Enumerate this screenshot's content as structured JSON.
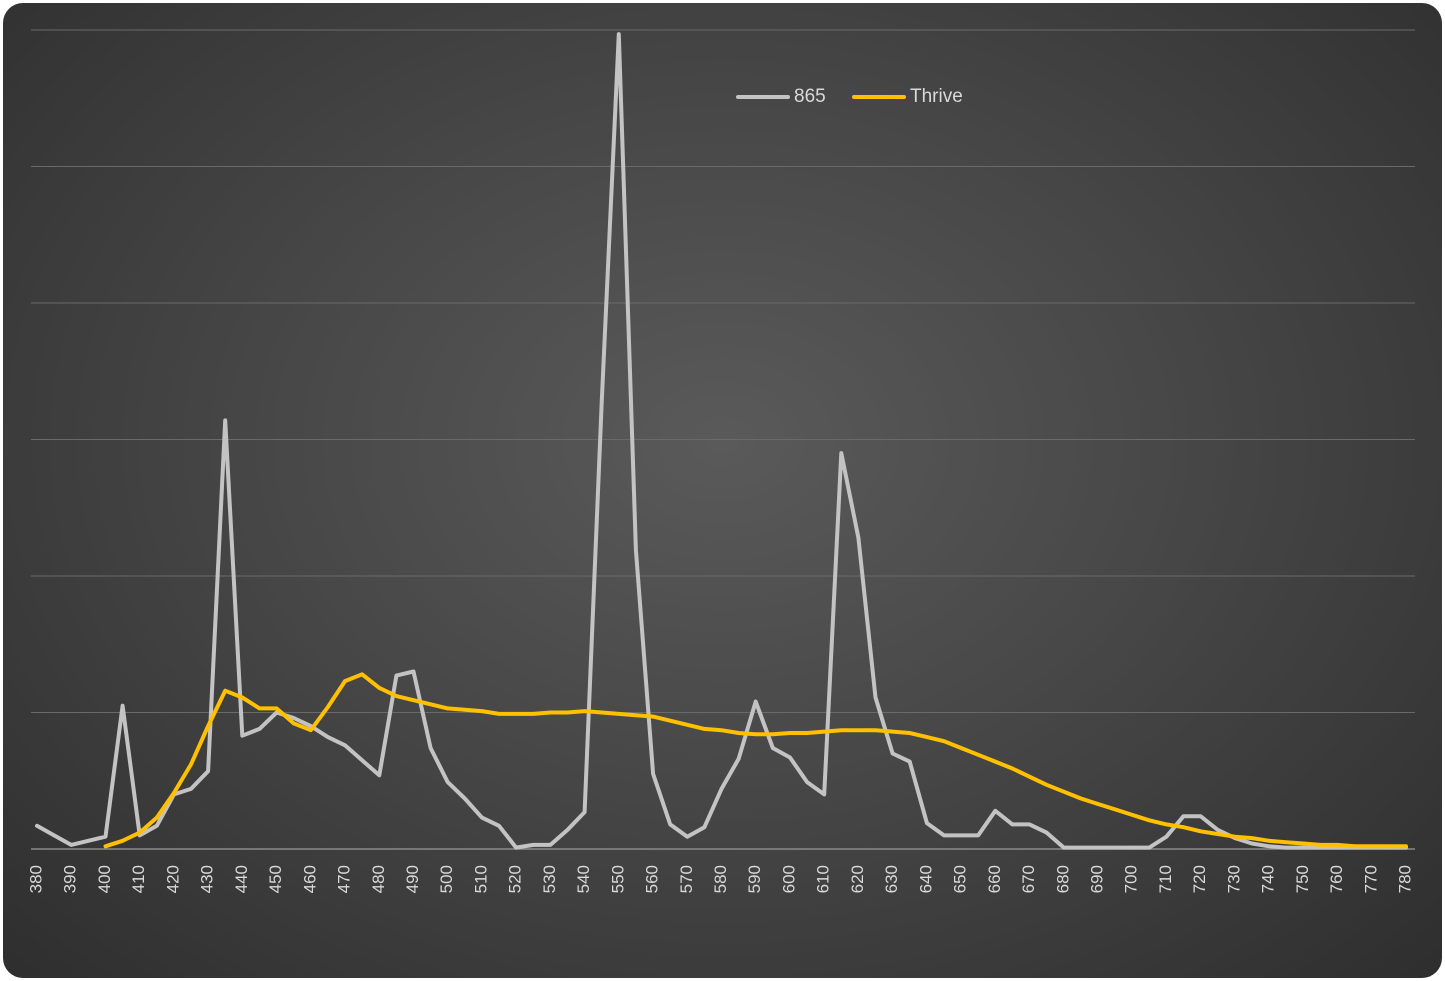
{
  "chart_data": {
    "type": "line",
    "title": "",
    "xlabel": "",
    "ylabel": "",
    "legend_position": "top-center",
    "grid": true,
    "ylim": [
      0,
      6
    ],
    "x": [
      380,
      385,
      390,
      395,
      400,
      405,
      410,
      415,
      420,
      425,
      430,
      435,
      440,
      445,
      450,
      455,
      460,
      465,
      470,
      475,
      480,
      485,
      490,
      495,
      500,
      505,
      510,
      515,
      520,
      525,
      530,
      535,
      540,
      545,
      550,
      555,
      560,
      565,
      570,
      575,
      580,
      585,
      590,
      595,
      600,
      605,
      610,
      615,
      620,
      625,
      630,
      635,
      640,
      645,
      650,
      655,
      660,
      665,
      670,
      675,
      680,
      685,
      690,
      695,
      700,
      705,
      710,
      715,
      720,
      725,
      730,
      735,
      740,
      745,
      750,
      755,
      760,
      765,
      770,
      775,
      780
    ],
    "x_ticks": [
      "380",
      "390",
      "400",
      "410",
      "420",
      "430",
      "440",
      "450",
      "460",
      "470",
      "480",
      "490",
      "500",
      "510",
      "520",
      "530",
      "540",
      "550",
      "560",
      "570",
      "580",
      "590",
      "600",
      "610",
      "620",
      "630",
      "640",
      "650",
      "660",
      "670",
      "680",
      "690",
      "700",
      "710",
      "720",
      "730",
      "740",
      "750",
      "760",
      "770",
      "780"
    ],
    "series": [
      {
        "name": "865",
        "color": "#c3c3c3",
        "values": [
          0.17,
          0.1,
          0.03,
          0.06,
          0.09,
          1.05,
          0.1,
          0.17,
          0.4,
          0.44,
          0.57,
          3.14,
          0.83,
          0.88,
          1.0,
          0.96,
          0.9,
          0.82,
          0.76,
          0.65,
          0.54,
          1.27,
          1.3,
          0.74,
          0.49,
          0.37,
          0.23,
          0.17,
          0.01,
          0.03,
          0.03,
          0.14,
          0.27,
          3.27,
          5.97,
          2.19,
          0.55,
          0.18,
          0.09,
          0.16,
          0.44,
          0.66,
          1.08,
          0.74,
          0.67,
          0.49,
          0.4,
          2.9,
          2.28,
          1.11,
          0.7,
          0.64,
          0.19,
          0.1,
          0.1,
          0.1,
          0.28,
          0.18,
          0.18,
          0.12,
          0.01,
          0.01,
          0.01,
          0.01,
          0.01,
          0.01,
          0.09,
          0.24,
          0.24,
          0.14,
          0.08,
          0.04,
          0.02,
          0.01,
          0.01,
          0.01,
          0.01,
          0.01,
          0.01,
          0.01,
          0.01
        ]
      },
      {
        "name": "Thrive",
        "color": "#ffc000",
        "values": [
          null,
          null,
          null,
          null,
          0.02,
          0.06,
          0.12,
          0.23,
          0.41,
          0.62,
          0.9,
          1.16,
          1.11,
          1.03,
          1.03,
          0.92,
          0.87,
          1.04,
          1.23,
          1.28,
          1.18,
          1.12,
          1.09,
          1.06,
          1.03,
          1.02,
          1.01,
          0.99,
          0.99,
          0.99,
          1.0,
          1.0,
          1.01,
          1.0,
          0.99,
          0.98,
          0.97,
          0.94,
          0.91,
          0.88,
          0.87,
          0.85,
          0.84,
          0.84,
          0.85,
          0.85,
          0.86,
          0.87,
          0.87,
          0.87,
          0.86,
          0.85,
          0.82,
          0.79,
          0.74,
          0.69,
          0.64,
          0.59,
          0.53,
          0.47,
          0.42,
          0.37,
          0.33,
          0.29,
          0.25,
          0.21,
          0.18,
          0.16,
          0.13,
          0.11,
          0.09,
          0.08,
          0.06,
          0.05,
          0.04,
          0.03,
          0.03,
          0.02,
          0.02,
          0.02,
          0.02
        ]
      }
    ]
  }
}
